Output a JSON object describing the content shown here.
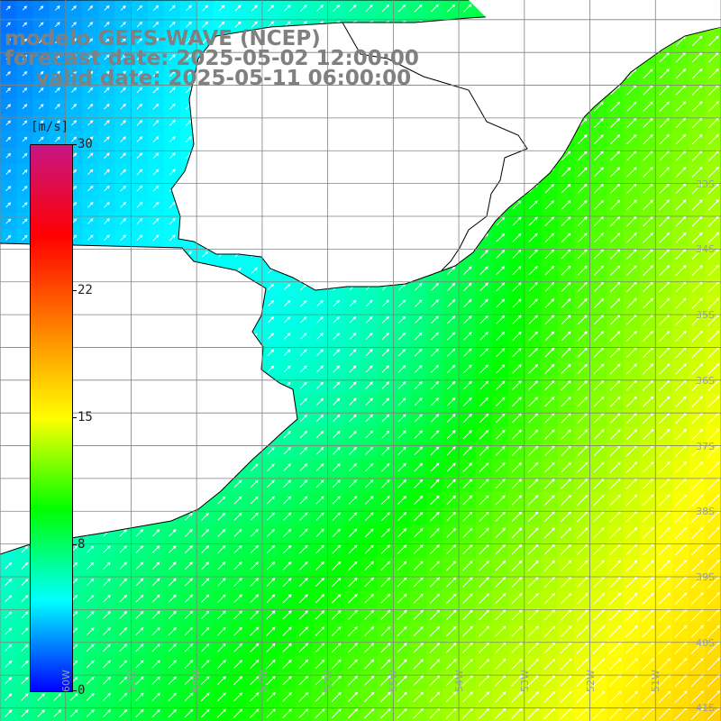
{
  "title": {
    "line1": "modelo GEFS-WAVE (NCEP)",
    "line2": "forecast date: 2025-05-02 12:00:00",
    "line3": "valid date: 2025-05-11 06:00:00"
  },
  "colorbar": {
    "units": "[m/s]",
    "min": 0,
    "max": 30,
    "ticks": [
      {
        "value": 30,
        "label": "30"
      },
      {
        "value": 22,
        "label": "22"
      },
      {
        "value": 15,
        "label": "15"
      },
      {
        "value": 8,
        "label": "8"
      },
      {
        "value": 0,
        "label": "0"
      }
    ],
    "colors": [
      "#0000ff",
      "#00ffff",
      "#00ff00",
      "#ffff00",
      "#ff8000",
      "#ff0000",
      "#c71585"
    ]
  },
  "map": {
    "field": "wind speed with wind direction arrows",
    "region": "Rio de la Plata / Uruguay coast, South Atlantic",
    "lon_range": [
      -61.0,
      -50.0
    ],
    "lat_range": [
      -41.2,
      -30.2
    ],
    "lat_labels": [
      "33S",
      "34S",
      "35S",
      "36S",
      "37S",
      "38S",
      "39S",
      "40S",
      "41S"
    ],
    "lon_labels": [
      "60W",
      "59W",
      "58W",
      "57W",
      "56W",
      "55W",
      "54W",
      "53W",
      "52W",
      "51W"
    ],
    "wind_direction": "from southwest (arrows pointing north-east)",
    "speed_summary": "about 2-5 m/s near the coast and estuary, increasing to about 17 m/s in the south-east corner",
    "colors": {
      "land": "#ffffff",
      "coastline": "#000000",
      "grid": "#808080",
      "arrow": "#ffffff"
    }
  }
}
